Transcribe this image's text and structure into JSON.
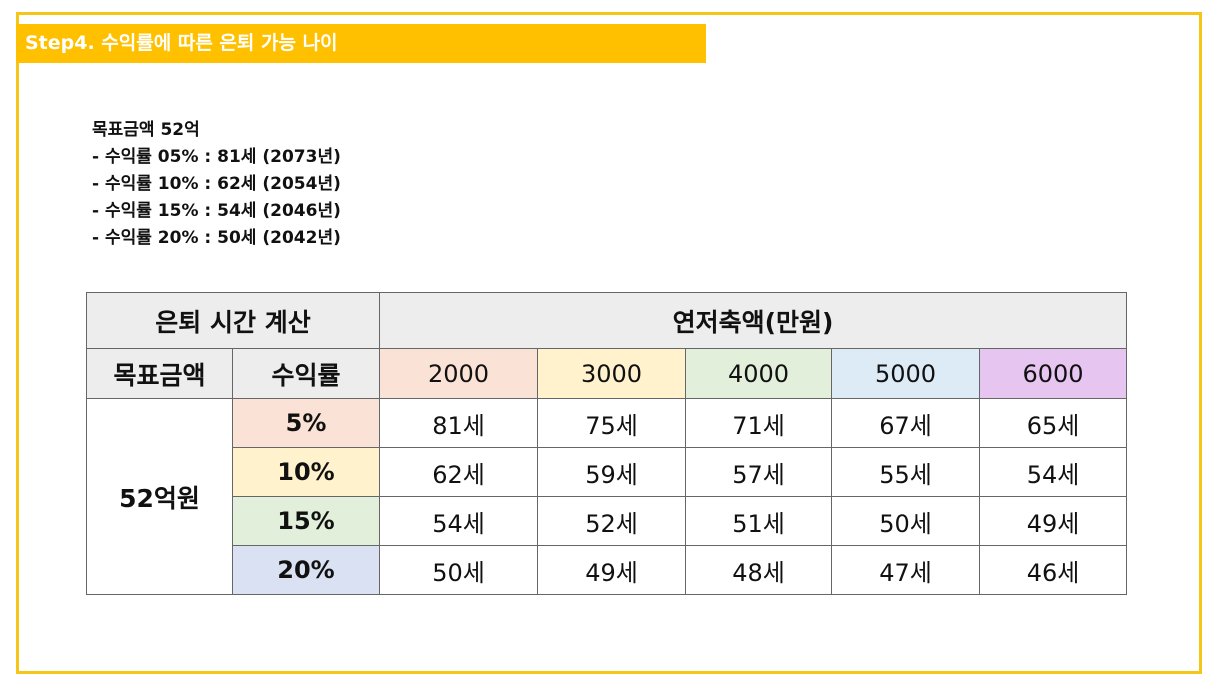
{
  "title": "Step4. 수익률에 따른 은퇴 가능 나이",
  "summary": {
    "heading": "목표금액 52억",
    "lines": [
      "- 수익률 05% : 81세 (2073년)",
      "- 수익률 10% : 62세 (2054년)",
      "- 수익률 15% : 54세 (2046년)",
      "- 수익률 20% : 50세 (2042년)"
    ]
  },
  "table": {
    "corner_title": "은퇴 시간 계산",
    "savings_header": "연저축액(만원)",
    "goal_header": "목표금액",
    "rate_header": "수익률",
    "savings": [
      "2000",
      "3000",
      "4000",
      "5000",
      "6000"
    ],
    "goal": "52억원",
    "rows": [
      {
        "rate": "5%",
        "ages": [
          "81세",
          "75세",
          "71세",
          "67세",
          "65세"
        ]
      },
      {
        "rate": "10%",
        "ages": [
          "62세",
          "59세",
          "57세",
          "55세",
          "54세"
        ]
      },
      {
        "rate": "15%",
        "ages": [
          "54세",
          "52세",
          "51세",
          "50세",
          "49세"
        ]
      },
      {
        "rate": "20%",
        "ages": [
          "50세",
          "49세",
          "48세",
          "47세",
          "46세"
        ]
      }
    ]
  },
  "colors": {
    "accent": "#ffc000"
  }
}
